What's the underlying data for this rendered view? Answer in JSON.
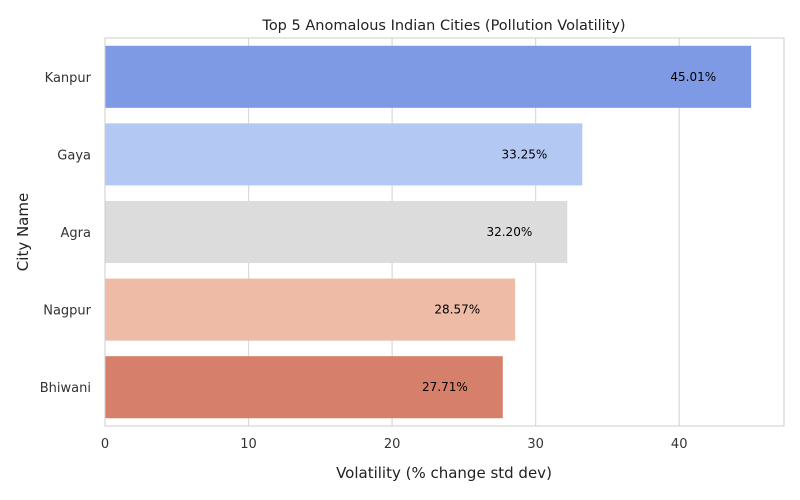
{
  "chart_data": {
    "type": "bar",
    "orientation": "horizontal",
    "title": "Top 5 Anomalous Indian Cities (Pollution Volatility)",
    "xlabel": "Volatility (% change std dev)",
    "ylabel": "City Name",
    "categories": [
      "Kanpur",
      "Gaya",
      "Agra",
      "Nagpur",
      "Bhiwani"
    ],
    "values": [
      45.01,
      33.25,
      32.2,
      28.57,
      27.71
    ],
    "data_labels": [
      "45.01%",
      "33.25%",
      "32.20%",
      "28.57%",
      "27.71%"
    ],
    "colors": [
      "#7f9ae4",
      "#b3c9f4",
      "#dcdcdc",
      "#edbba6",
      "#d6806c"
    ],
    "xlim": [
      0,
      47.3
    ],
    "xticks": [
      0,
      10,
      20,
      30,
      40
    ],
    "grid": true,
    "legend": "none"
  }
}
